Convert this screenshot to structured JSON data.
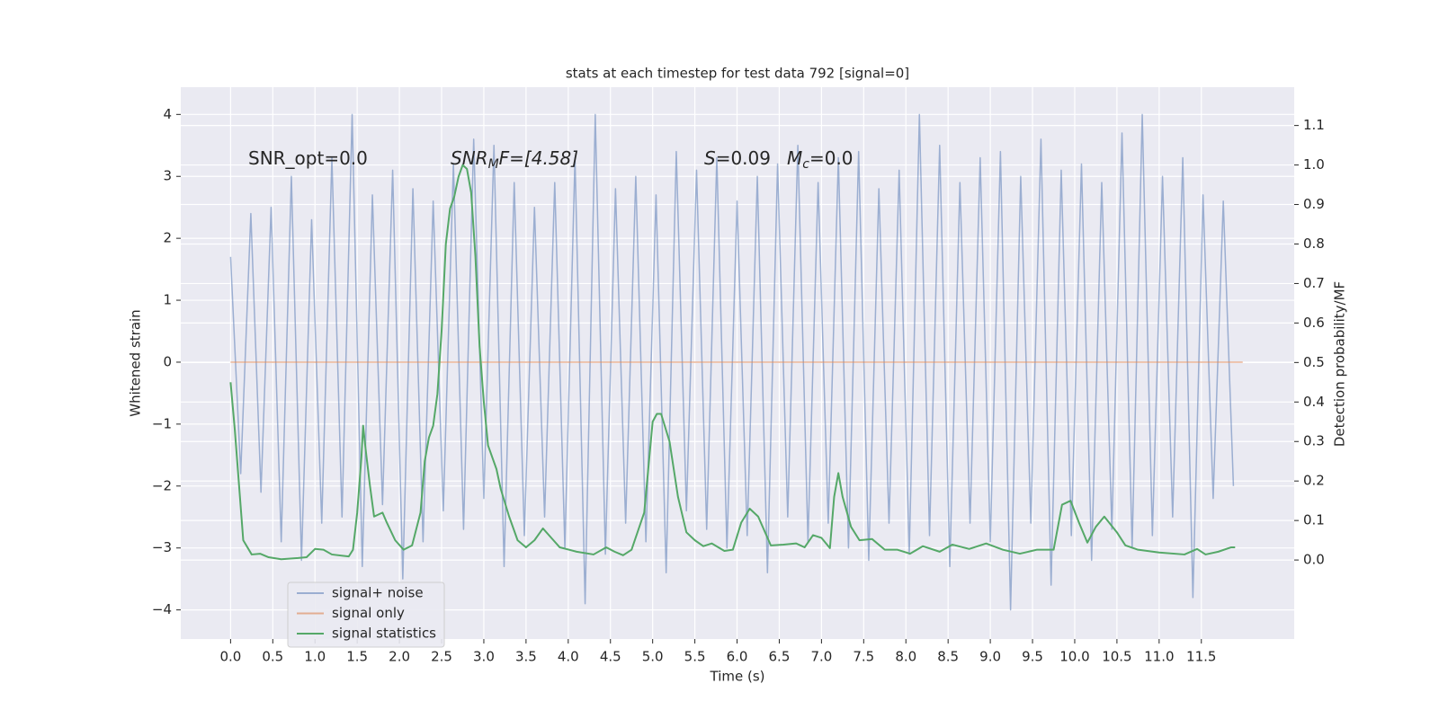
{
  "chart_data": {
    "type": "line",
    "title": "stats at each timestep for test data 792 [signal=0]",
    "xlabel": "Time (s)",
    "ylabel": "Whitened strain",
    "y2label": "Detection probability/MF",
    "annotations": [
      [
        "SNR_opt=0.0"
      ],
      [
        "SNR",
        "M",
        "F=[4.58]"
      ],
      [
        "S",
        "=0.09",
        "M",
        "c",
        "=0.0"
      ]
    ],
    "xlim": [
      -0.59,
      12.6
    ],
    "ylim": [
      -4.47,
      4.44
    ],
    "y2lim": [
      -0.2,
      1.197
    ],
    "xticks": [
      {
        "value": 0,
        "label": "0.0"
      },
      0.5,
      {
        "value": 1,
        "label": "1.0"
      },
      1.5,
      {
        "value": 2,
        "label": "2.0"
      },
      2.5,
      {
        "value": 3,
        "label": "3.0"
      },
      3.5,
      {
        "value": 4,
        "label": "4.0"
      },
      4.5,
      {
        "value": 5,
        "label": "5.0"
      },
      5.5,
      {
        "value": 6,
        "label": "6.0"
      },
      6.5,
      {
        "value": 7,
        "label": "7.0"
      },
      7.5,
      {
        "value": 8,
        "label": "8.0"
      },
      8.5,
      {
        "value": 9,
        "label": "9.0"
      },
      9.5,
      {
        "value": 10,
        "label": "10.0"
      },
      10.5,
      {
        "value": 11,
        "label": "11.0"
      },
      11.5
    ],
    "yticks": [
      {
        "value": -4,
        "label": "−4"
      },
      {
        "value": -3,
        "label": "−3"
      },
      {
        "value": -2,
        "label": "−2"
      },
      {
        "value": -1,
        "label": "−1"
      },
      0,
      1,
      2,
      3,
      4
    ],
    "y2ticks": [
      {
        "value": 0,
        "label": "0.0"
      },
      0.1,
      0.2,
      0.3,
      0.4,
      0.5,
      0.6,
      0.7,
      0.8,
      0.9,
      {
        "value": 1,
        "label": "1.0"
      },
      1.1
    ],
    "grid": true,
    "legend": "lower left",
    "series": [
      {
        "name": "signal+ noise",
        "color": "#4c72b0",
        "opacity": 0.5,
        "x": [
          0,
          0.12,
          0.24,
          0.36,
          0.48,
          0.6,
          0.72,
          0.84,
          0.96,
          1.08,
          1.2,
          1.32,
          1.44,
          1.56,
          1.68,
          1.8,
          1.92,
          2.04,
          2.16,
          2.28,
          2.4,
          2.52,
          2.64,
          2.76,
          2.88,
          3,
          3.12,
          3.24,
          3.36,
          3.48,
          3.6,
          3.72,
          3.84,
          3.96,
          4.08,
          4.2,
          4.32,
          4.44,
          4.56,
          4.68,
          4.8,
          4.92,
          5.04,
          5.16,
          5.28,
          5.4,
          5.52,
          5.64,
          5.76,
          5.88,
          6,
          6.12,
          6.24,
          6.36,
          6.48,
          6.6,
          6.72,
          6.84,
          6.96,
          7.08,
          7.2,
          7.32,
          7.44,
          7.56,
          7.68,
          7.8,
          7.92,
          8.04,
          8.16,
          8.28,
          8.4,
          8.52,
          8.64,
          8.76,
          8.88,
          9,
          9.12,
          9.24,
          9.36,
          9.48,
          9.6,
          9.72,
          9.84,
          9.96,
          10.08,
          10.2,
          10.32,
          10.44,
          10.56,
          10.68,
          10.8,
          10.92,
          11.04,
          11.16,
          11.28,
          11.4,
          11.52,
          11.64,
          11.76,
          11.88
        ],
        "values": [
          1.7,
          -1.8,
          2.4,
          -2.1,
          2.5,
          -2.9,
          3.0,
          -3.2,
          2.3,
          -2.6,
          3.3,
          -2.5,
          4.0,
          -3.3,
          2.7,
          -2.3,
          3.1,
          -3.5,
          2.8,
          -2.9,
          2.6,
          -2.4,
          3.2,
          -2.7,
          3.6,
          -2.2,
          3.5,
          -3.3,
          2.9,
          -2.8,
          2.5,
          -2.5,
          2.9,
          -3.0,
          3.3,
          -3.9,
          4.0,
          -3.1,
          2.8,
          -2.6,
          3.0,
          -2.9,
          2.7,
          -3.4,
          3.4,
          -2.4,
          3.1,
          -2.7,
          3.3,
          -3.0,
          2.6,
          -2.8,
          3.0,
          -3.4,
          3.2,
          -2.5,
          3.5,
          -2.9,
          2.9,
          -2.6,
          3.3,
          -3.0,
          3.4,
          -3.2,
          2.8,
          -2.6,
          3.1,
          -3.1,
          4.0,
          -2.8,
          3.5,
          -3.3,
          2.9,
          -2.6,
          3.3,
          -2.9,
          3.4,
          -4.0,
          3.0,
          -2.6,
          3.6,
          -3.6,
          3.1,
          -2.8,
          3.2,
          -3.2,
          2.9,
          -2.7,
          3.7,
          -3.0,
          4.0,
          -2.8,
          3.0,
          -2.5,
          3.3,
          -3.8,
          2.7,
          -2.2,
          2.6,
          -2.0
        ]
      },
      {
        "name": "signal only",
        "color": "#dd8452",
        "opacity": 0.6,
        "x": [
          0,
          11.99
        ],
        "values": [
          0,
          0
        ]
      },
      {
        "name": "signal statistics",
        "color": "#55a868",
        "opacity": 1,
        "axis": "y2",
        "x": [
          0,
          0.05,
          0.1,
          0.15,
          0.25,
          0.35,
          0.45,
          0.6,
          0.8,
          0.9,
          1.0,
          1.1,
          1.2,
          1.4,
          1.45,
          1.5,
          1.55,
          1.57,
          1.6,
          1.65,
          1.7,
          1.8,
          1.85,
          1.95,
          2.05,
          2.15,
          2.25,
          2.3,
          2.35,
          2.4,
          2.45,
          2.5,
          2.55,
          2.6,
          2.65,
          2.7,
          2.75,
          2.8,
          2.85,
          2.9,
          2.95,
          3.0,
          3.05,
          3.15,
          3.2,
          3.3,
          3.4,
          3.5,
          3.6,
          3.7,
          3.8,
          3.9,
          4.1,
          4.3,
          4.45,
          4.55,
          4.65,
          4.75,
          4.9,
          5.0,
          5.05,
          5.1,
          5.2,
          5.3,
          5.4,
          5.5,
          5.6,
          5.7,
          5.85,
          5.95,
          6.05,
          6.15,
          6.25,
          6.4,
          6.55,
          6.7,
          6.8,
          6.9,
          7.0,
          7.1,
          7.15,
          7.2,
          7.25,
          7.35,
          7.45,
          7.6,
          7.75,
          7.9,
          8.05,
          8.2,
          8.4,
          8.55,
          8.75,
          8.95,
          9.15,
          9.35,
          9.55,
          9.75,
          9.85,
          9.95,
          10.05,
          10.15,
          10.25,
          10.35,
          10.5,
          10.6,
          10.75,
          11.0,
          11.3,
          11.45,
          11.55,
          11.7,
          11.85,
          11.9
        ],
        "values": [
          0.45,
          0.33,
          0.19,
          0.05,
          0.014,
          0.016,
          0.007,
          0.002,
          0.005,
          0.007,
          0.028,
          0.026,
          0.014,
          0.009,
          0.026,
          0.12,
          0.26,
          0.34,
          0.28,
          0.19,
          0.11,
          0.12,
          0.095,
          0.05,
          0.026,
          0.037,
          0.12,
          0.25,
          0.31,
          0.34,
          0.42,
          0.58,
          0.8,
          0.89,
          0.92,
          0.97,
          1.0,
          0.99,
          0.93,
          0.77,
          0.54,
          0.4,
          0.29,
          0.23,
          0.18,
          0.11,
          0.05,
          0.032,
          0.05,
          0.08,
          0.056,
          0.032,
          0.021,
          0.014,
          0.032,
          0.021,
          0.012,
          0.026,
          0.12,
          0.35,
          0.37,
          0.37,
          0.3,
          0.16,
          0.07,
          0.05,
          0.035,
          0.042,
          0.023,
          0.026,
          0.095,
          0.13,
          0.11,
          0.037,
          0.039,
          0.042,
          0.032,
          0.063,
          0.056,
          0.03,
          0.16,
          0.22,
          0.16,
          0.084,
          0.05,
          0.053,
          0.026,
          0.026,
          0.016,
          0.035,
          0.021,
          0.039,
          0.028,
          0.042,
          0.026,
          0.016,
          0.026,
          0.026,
          0.14,
          0.15,
          0.095,
          0.044,
          0.084,
          0.11,
          0.07,
          0.037,
          0.026,
          0.019,
          0.014,
          0.028,
          0.014,
          0.021,
          0.032,
          0.032
        ]
      }
    ]
  }
}
